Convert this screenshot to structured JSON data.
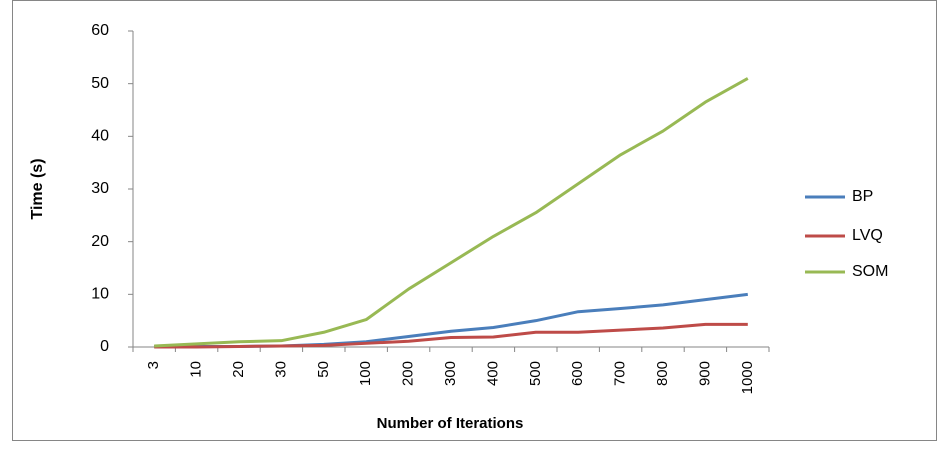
{
  "chart_data": {
    "type": "line",
    "x_label": "Number of Iterations",
    "y_label": "Time (s)",
    "categories": [
      "3",
      "10",
      "20",
      "30",
      "50",
      "100",
      "200",
      "300",
      "400",
      "500",
      "600",
      "700",
      "800",
      "900",
      "1000"
    ],
    "series": [
      {
        "name": "BP",
        "color": "#4a7ebb",
        "values": [
          0.1,
          0.1,
          0.1,
          0.2,
          0.5,
          1,
          2,
          3,
          3.7,
          5,
          6.7,
          7.3,
          8,
          9,
          10
        ]
      },
      {
        "name": "LVQ",
        "color": "#be4b48",
        "values": [
          0,
          0,
          0.1,
          0.2,
          0.3,
          0.7,
          1.1,
          1.8,
          1.9,
          2.8,
          2.8,
          3.2,
          3.6,
          4.3,
          4.3
        ]
      },
      {
        "name": "SOM",
        "color": "#98b954",
        "values": [
          0.2,
          0.6,
          1,
          1.2,
          2.8,
          5.2,
          11,
          16,
          21,
          25.5,
          31,
          36.5,
          41,
          46.5,
          51
        ]
      }
    ],
    "ylim": [
      0,
      60
    ],
    "yticks": [
      0,
      10,
      20,
      30,
      40,
      50,
      60
    ],
    "grid": false,
    "legend": "right"
  }
}
